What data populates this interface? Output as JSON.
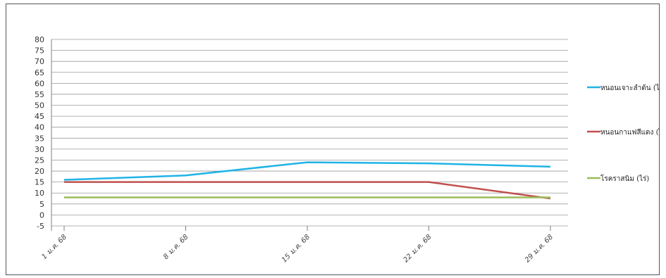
{
  "chart_data": {
    "type": "line",
    "title": "",
    "xlabel": "",
    "ylabel": "",
    "categories": [
      "1 ม.ค. 68",
      "8 ม.ค. 68",
      "15 ม.ค. 68",
      "22 ม.ค. 68",
      "29 ม.ค. 68"
    ],
    "ylim": [
      -5,
      80
    ],
    "yticks": [
      -5,
      0,
      5,
      10,
      15,
      20,
      25,
      30,
      35,
      40,
      45,
      50,
      55,
      60,
      65,
      70,
      75,
      80
    ],
    "grid": true,
    "legend_position": "right",
    "series": [
      {
        "name": "หนอนเจาะลำต้น (ไร่)",
        "color": "#1fb3e6",
        "values": [
          16,
          18,
          24,
          23.5,
          22
        ]
      },
      {
        "name": "หนอนกาแฟสีแดง (ไร่)",
        "color": "#c0504d",
        "values": [
          15,
          15,
          15,
          15,
          7.5
        ]
      },
      {
        "name": "โรคราสนิม (ไร่)",
        "color": "#9bbb59",
        "values": [
          8,
          8,
          8,
          8,
          8
        ]
      }
    ]
  }
}
